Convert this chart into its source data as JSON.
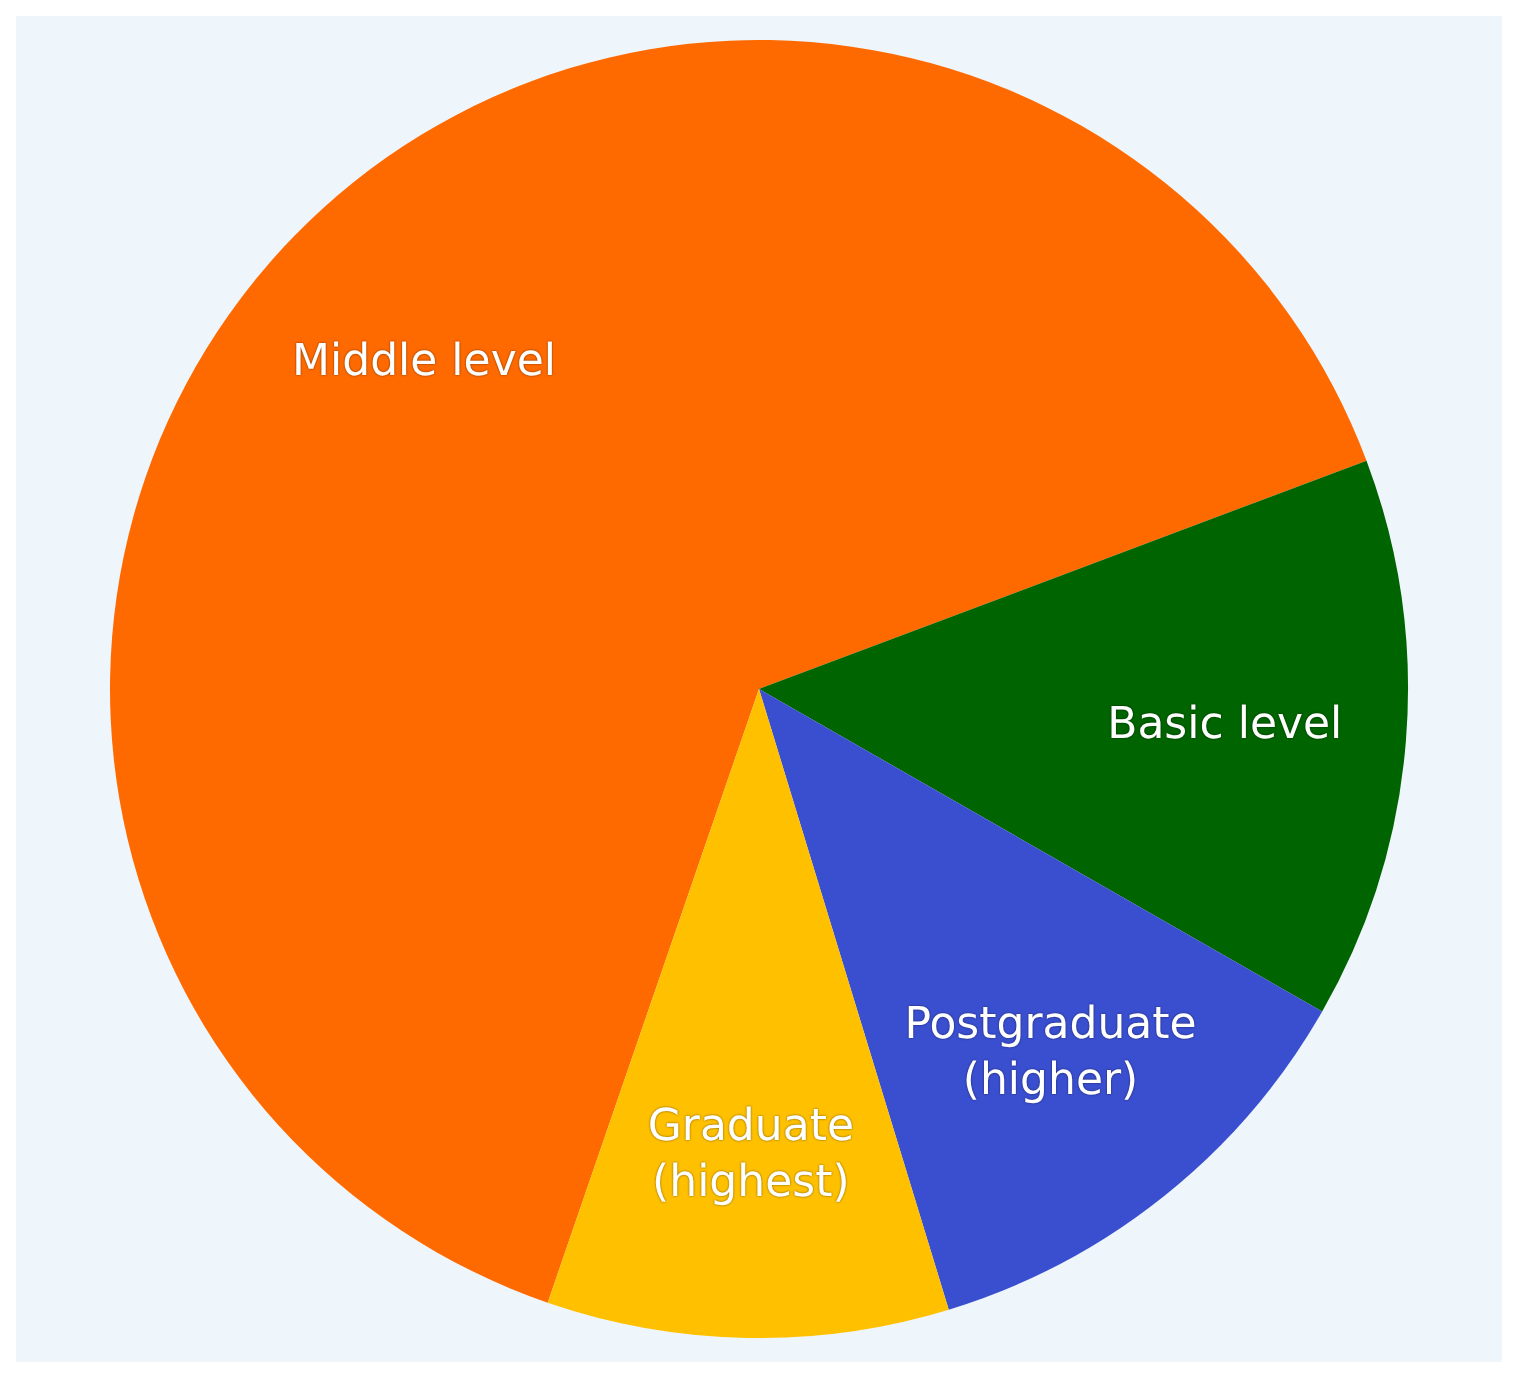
{
  "chart_data": {
    "type": "pie",
    "categories": [
      "Middle level",
      "Basic level",
      "Postgraduate (higher)",
      "Graduate (highest)"
    ],
    "values": [
      64,
      14,
      12,
      10
    ],
    "colors": [
      "#ff6a00",
      "#006400",
      "#3a4fd0",
      "#ffc000"
    ],
    "legend": false
  }
}
